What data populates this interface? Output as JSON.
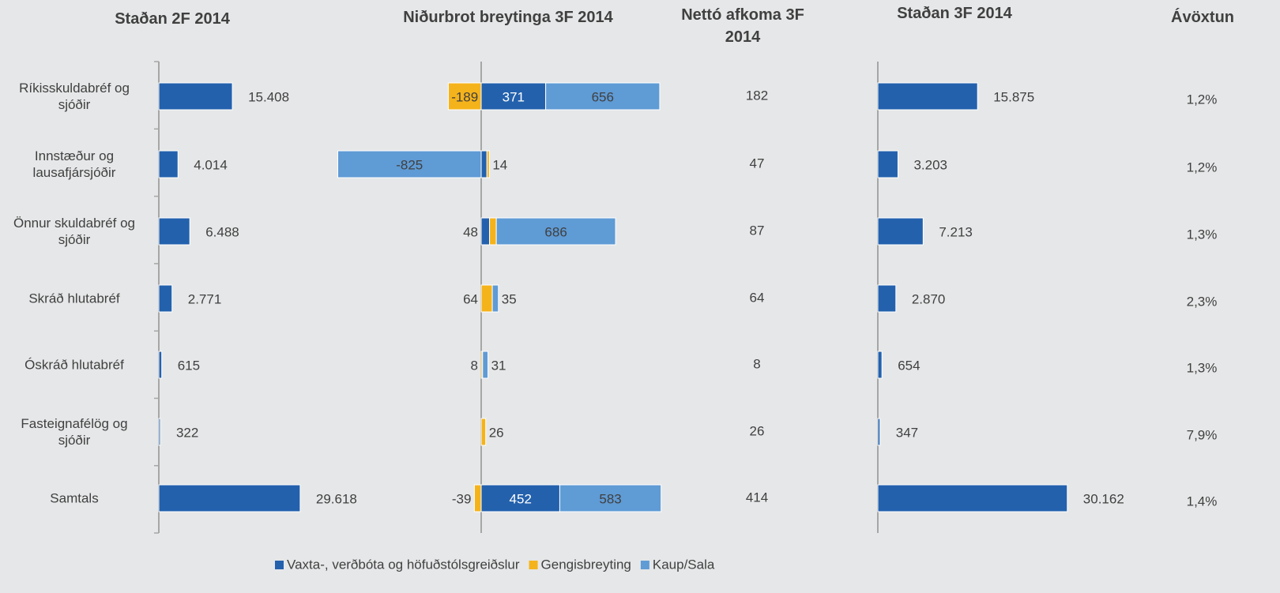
{
  "chart_data": [
    {
      "type": "hbar",
      "title": "Staðan 2F 2014",
      "categories": [
        "Ríkisskuldabréf og sjóðir",
        "Innstæður og lausafjársjóðir",
        "Önnur skuldabréf og sjóðir",
        "Skráð hlutabréf",
        "Óskráð hlutabréf",
        "Fasteignafélög og sjóðir",
        "Samtals"
      ],
      "values": [
        15408,
        4014,
        6488,
        2771,
        615,
        322,
        29618
      ],
      "value_labels": [
        "15.408",
        "4.014",
        "6.488",
        "2.771",
        "615",
        "322",
        "29.618"
      ],
      "color": "#2361ad",
      "xlim": [
        0,
        50000
      ]
    },
    {
      "type": "stacked_hbar",
      "title": "Niðurbrot breytinga 3F 2014",
      "xlim": [
        -1000,
        1500
      ],
      "legend": "bottom",
      "series": [
        {
          "name": "Vaxta-, verðbóta og höfuðstólsgreiðslur",
          "color": "#2361ad",
          "values": [
            371,
            33,
            48,
            null,
            null,
            null,
            452
          ]
        },
        {
          "name": "Gengisbreyting",
          "color": "#f5b31b",
          "values": [
            -189,
            14,
            39,
            64,
            8,
            26,
            -39
          ]
        },
        {
          "name": "Kaup/Sala",
          "color": "#5f9bd5",
          "values": [
            656,
            -825,
            686,
            35,
            31,
            null,
            583
          ]
        }
      ]
    },
    {
      "type": "column_text",
      "title": "Nettó afkoma 3F 2014",
      "values": [
        182,
        47,
        87,
        64,
        8,
        26,
        414
      ]
    },
    {
      "type": "hbar",
      "title": "Staðan 3F 2014",
      "values": [
        15875,
        3203,
        7213,
        2870,
        654,
        347,
        30162
      ],
      "value_labels": [
        "15.875",
        "3.203",
        "7.213",
        "2.870",
        "654",
        "347",
        "30.162"
      ],
      "color": "#2361ad",
      "xlim": [
        0,
        40000
      ]
    },
    {
      "type": "column_text",
      "title": "Ávöxtun",
      "values": [
        1.2,
        1.2,
        1.3,
        2.3,
        1.3,
        7.9,
        1.4
      ],
      "value_labels": [
        "1,2%",
        "1,2%",
        "1,3%",
        "2,3%",
        "1,3%",
        "7,9%",
        "1,4%"
      ]
    }
  ]
}
